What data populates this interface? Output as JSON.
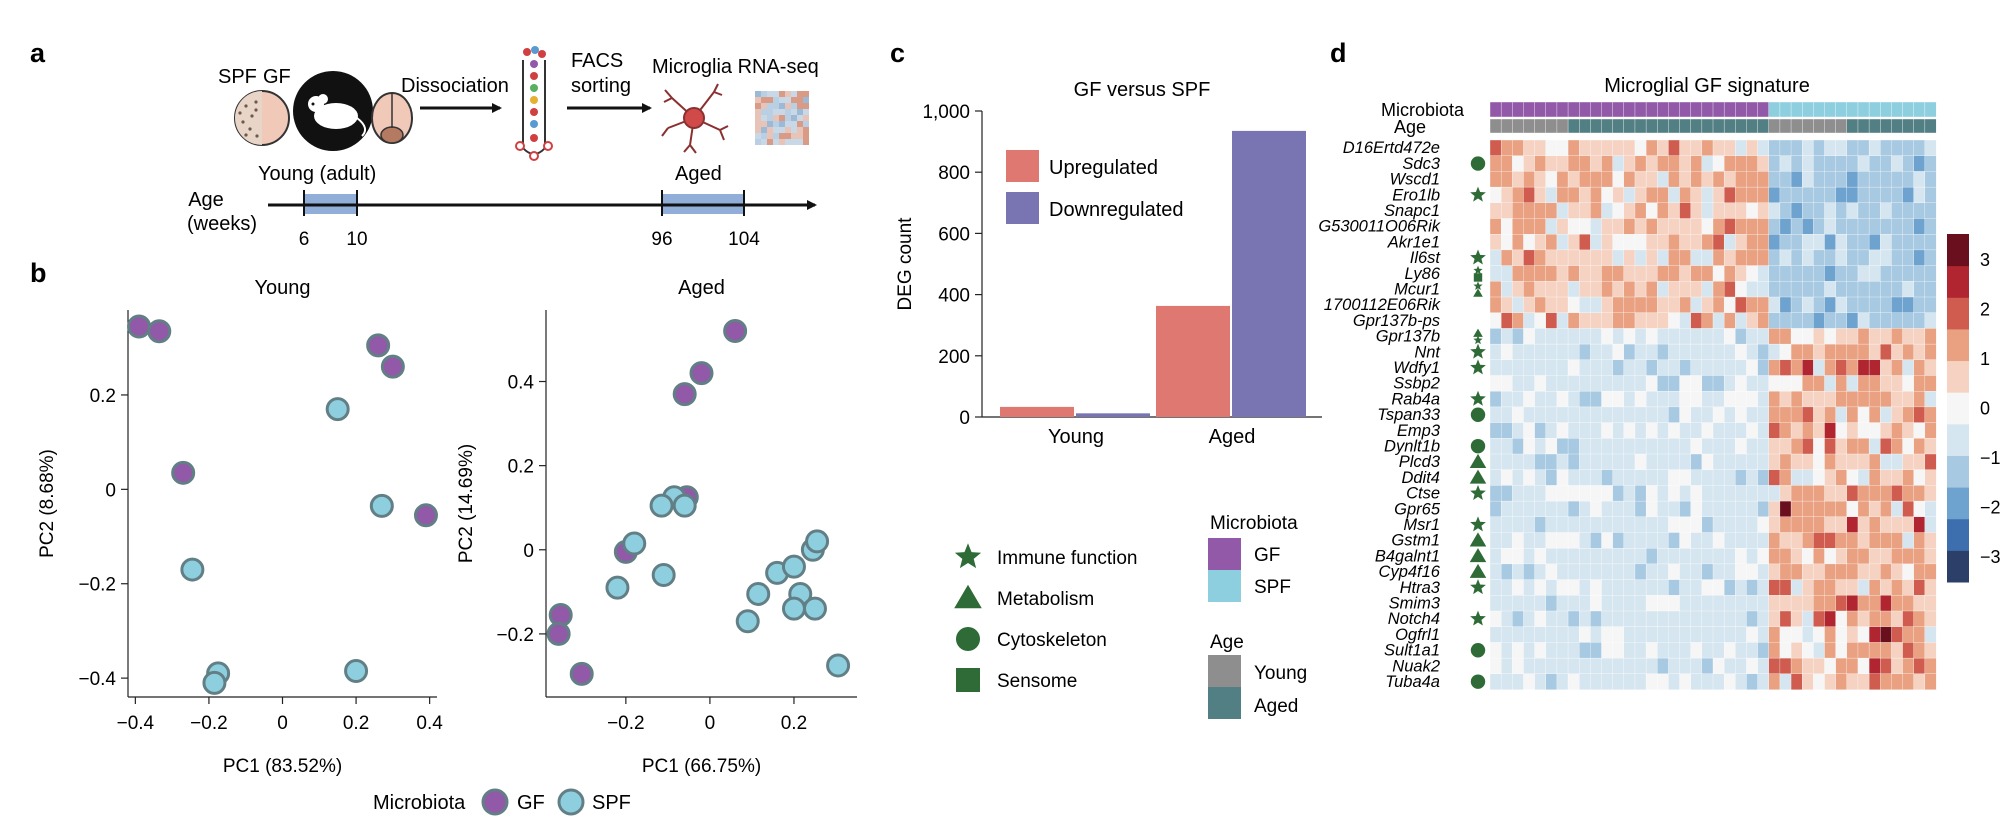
{
  "panel_letters": [
    "a",
    "b",
    "c",
    "d"
  ],
  "schematic": {
    "spf_label": "SPF",
    "gf_label": "GF",
    "step1": "Dissociation",
    "step2_line1": "FACS",
    "step2_line2": "sorting",
    "step3": "Microglia RNA-seq",
    "age_label_line1": "Age",
    "age_label_line2": "(weeks)",
    "young_label": "Young (adult)",
    "aged_label": "Aged",
    "ticks": [
      "6",
      "10",
      "96",
      "104"
    ]
  },
  "colors": {
    "gf": "#9159a8",
    "spf": "#8ecfdf",
    "marker_edge": "#627f86",
    "up": "#e07872",
    "down": "#7975b3",
    "age_young": "#8e8e8e",
    "age_aged": "#527f84",
    "annotation_green": "#2e6b36",
    "timeline_box": "#91aed9"
  },
  "pca_legend": {
    "title": "Microbiota",
    "gf": "GF",
    "spf": "SPF"
  },
  "chart_data": [
    {
      "type": "scatter",
      "title": "Young",
      "xlabel": "PC1 (83.52%)",
      "ylabel": "PC2 (8.68%)",
      "xlim": [
        -0.42,
        0.42
      ],
      "ylim": [
        -0.44,
        0.38
      ],
      "xticks": [
        -0.4,
        -0.2,
        0,
        0.2,
        0.4
      ],
      "xtick_labels": [
        "−0.4",
        "−0.2",
        "0",
        "0.2",
        "0.4"
      ],
      "yticks": [
        -0.4,
        -0.2,
        0,
        0.2
      ],
      "ytick_labels": [
        "−0.4",
        "−0.2",
        "0",
        "0.2"
      ],
      "series": [
        {
          "name": "GF",
          "points": [
            [
              -0.39,
              0.345
            ],
            [
              -0.335,
              0.335
            ],
            [
              -0.27,
              0.035
            ],
            [
              0.26,
              0.305
            ],
            [
              0.3,
              0.26
            ],
            [
              0.39,
              -0.055
            ]
          ]
        },
        {
          "name": "SPF",
          "points": [
            [
              -0.245,
              -0.17
            ],
            [
              -0.175,
              -0.39
            ],
            [
              -0.185,
              -0.41
            ],
            [
              0.15,
              0.17
            ],
            [
              0.27,
              -0.035
            ],
            [
              0.2,
              -0.385
            ]
          ]
        }
      ]
    },
    {
      "type": "scatter",
      "title": "Aged",
      "xlabel": "PC1 (66.75%)",
      "ylabel": "PC2 (14.69%)",
      "xlim": [
        -0.39,
        0.35
      ],
      "ylim": [
        -0.35,
        0.57
      ],
      "xticks": [
        -0.2,
        0,
        0.2
      ],
      "xtick_labels": [
        "−0.2",
        "0",
        "0.2"
      ],
      "yticks": [
        -0.2,
        0,
        0.2,
        0.4
      ],
      "ytick_labels": [
        "−0.2",
        "0",
        "0.2",
        "0.4"
      ],
      "series": [
        {
          "name": "GF",
          "points": [
            [
              0.06,
              0.52
            ],
            [
              -0.02,
              0.42
            ],
            [
              -0.06,
              0.37
            ],
            [
              -0.055,
              0.125
            ],
            [
              -0.2,
              -0.005
            ],
            [
              -0.355,
              -0.155
            ],
            [
              -0.36,
              -0.2
            ],
            [
              -0.305,
              -0.295
            ]
          ]
        },
        {
          "name": "SPF",
          "points": [
            [
              -0.085,
              0.125
            ],
            [
              -0.06,
              0.105
            ],
            [
              -0.115,
              0.105
            ],
            [
              -0.18,
              0.015
            ],
            [
              -0.11,
              -0.06
            ],
            [
              -0.22,
              -0.09
            ],
            [
              0.16,
              -0.055
            ],
            [
              0.2,
              -0.04
            ],
            [
              0.245,
              0.0
            ],
            [
              0.255,
              0.02
            ],
            [
              0.115,
              -0.105
            ],
            [
              0.215,
              -0.105
            ],
            [
              0.2,
              -0.14
            ],
            [
              0.25,
              -0.14
            ],
            [
              0.09,
              -0.17
            ],
            [
              0.305,
              -0.275
            ]
          ]
        }
      ]
    },
    {
      "type": "bar",
      "title": "GF versus SPF",
      "ylabel": "DEG count",
      "categories": [
        "Young",
        "Aged"
      ],
      "ylim": [
        0,
        1000
      ],
      "yticks": [
        0,
        200,
        400,
        600,
        800,
        1000
      ],
      "ytick_labels": [
        "0",
        "200",
        "400",
        "600",
        "800",
        "1,000"
      ],
      "series": [
        {
          "name": "Upregulated",
          "values": [
            33,
            363
          ]
        },
        {
          "name": "Downregulated",
          "values": [
            12,
            935
          ]
        }
      ]
    }
  ],
  "annotation_legend": {
    "items": [
      {
        "shape": "star",
        "label": "Immune function"
      },
      {
        "shape": "triangle",
        "label": "Metabolism"
      },
      {
        "shape": "circle",
        "label": "Cytoskeleton"
      },
      {
        "shape": "square",
        "label": "Sensome"
      }
    ],
    "microbiota_title": "Microbiota",
    "microbiota_items": [
      "GF",
      "SPF"
    ],
    "age_title": "Age",
    "age_items": [
      "Young",
      "Aged"
    ]
  },
  "heatmap": {
    "title": "Microglial GF signature",
    "row_label_microbiota": "Microbiota",
    "row_label_age": "Age",
    "n_columns": 40,
    "gf_columns": 25,
    "young_columns_gf": 7,
    "young_columns_spf": 7,
    "colorbar_ticks": [
      "3",
      "2",
      "1",
      "0",
      "−1",
      "−2",
      "−3"
    ],
    "colorscale": [
      "#2b3f69",
      "#3d6fae",
      "#6fa3cf",
      "#a7c9e2",
      "#d6e6f0",
      "#f6f6f6",
      "#f5d2c2",
      "#e9a182",
      "#cf5c4e",
      "#b0252f",
      "#6a0f1e"
    ],
    "genes": [
      {
        "name": "D16Ertd472e",
        "mark": "",
        "block": "A"
      },
      {
        "name": "Sdc3",
        "mark": "circle",
        "block": "A"
      },
      {
        "name": "Wscd1",
        "mark": "",
        "block": "A"
      },
      {
        "name": "Ero1lb",
        "mark": "star",
        "block": "A"
      },
      {
        "name": "Snapc1",
        "mark": "",
        "block": "A"
      },
      {
        "name": "G530011O06Rik",
        "mark": "",
        "block": "A"
      },
      {
        "name": "Akr1e1",
        "mark": "",
        "block": "A"
      },
      {
        "name": "Il6st",
        "mark": "star",
        "block": "A"
      },
      {
        "name": "Ly86",
        "mark": "star,square",
        "block": "A"
      },
      {
        "name": "Mcur1",
        "mark": "star,triangle",
        "block": "A"
      },
      {
        "name": "1700112E06Rik",
        "mark": "",
        "block": "A"
      },
      {
        "name": "Gpr137b-ps",
        "mark": "",
        "block": "A"
      },
      {
        "name": "Gpr137b",
        "mark": "triangle,star",
        "block": "B"
      },
      {
        "name": "Nnt",
        "mark": "star",
        "block": "B"
      },
      {
        "name": "Wdfy1",
        "mark": "star",
        "block": "B"
      },
      {
        "name": "Ssbp2",
        "mark": "",
        "block": "B"
      },
      {
        "name": "Rab4a",
        "mark": "star",
        "block": "B"
      },
      {
        "name": "Tspan33",
        "mark": "circle",
        "block": "B"
      },
      {
        "name": "Emp3",
        "mark": "",
        "block": "B"
      },
      {
        "name": "Dynlt1b",
        "mark": "circle",
        "block": "B"
      },
      {
        "name": "Plcd3",
        "mark": "triangle",
        "block": "B"
      },
      {
        "name": "Ddit4",
        "mark": "triangle",
        "block": "B"
      },
      {
        "name": "Ctse",
        "mark": "star",
        "block": "B"
      },
      {
        "name": "Gpr65",
        "mark": "",
        "block": "B"
      },
      {
        "name": "Msr1",
        "mark": "star",
        "block": "B"
      },
      {
        "name": "Gstm1",
        "mark": "triangle",
        "block": "B"
      },
      {
        "name": "B4galnt1",
        "mark": "triangle",
        "block": "B"
      },
      {
        "name": "Cyp4f16",
        "mark": "triangle",
        "block": "B"
      },
      {
        "name": "Htra3",
        "mark": "star",
        "block": "B"
      },
      {
        "name": "Smim3",
        "mark": "",
        "block": "B"
      },
      {
        "name": "Notch4",
        "mark": "star",
        "block": "B"
      },
      {
        "name": "Ogfrl1",
        "mark": "",
        "block": "B"
      },
      {
        "name": "Sult1a1",
        "mark": "circle",
        "block": "B"
      },
      {
        "name": "Nuak2",
        "mark": "",
        "block": "B"
      },
      {
        "name": "Tuba4a",
        "mark": "circle",
        "block": "B"
      }
    ]
  }
}
